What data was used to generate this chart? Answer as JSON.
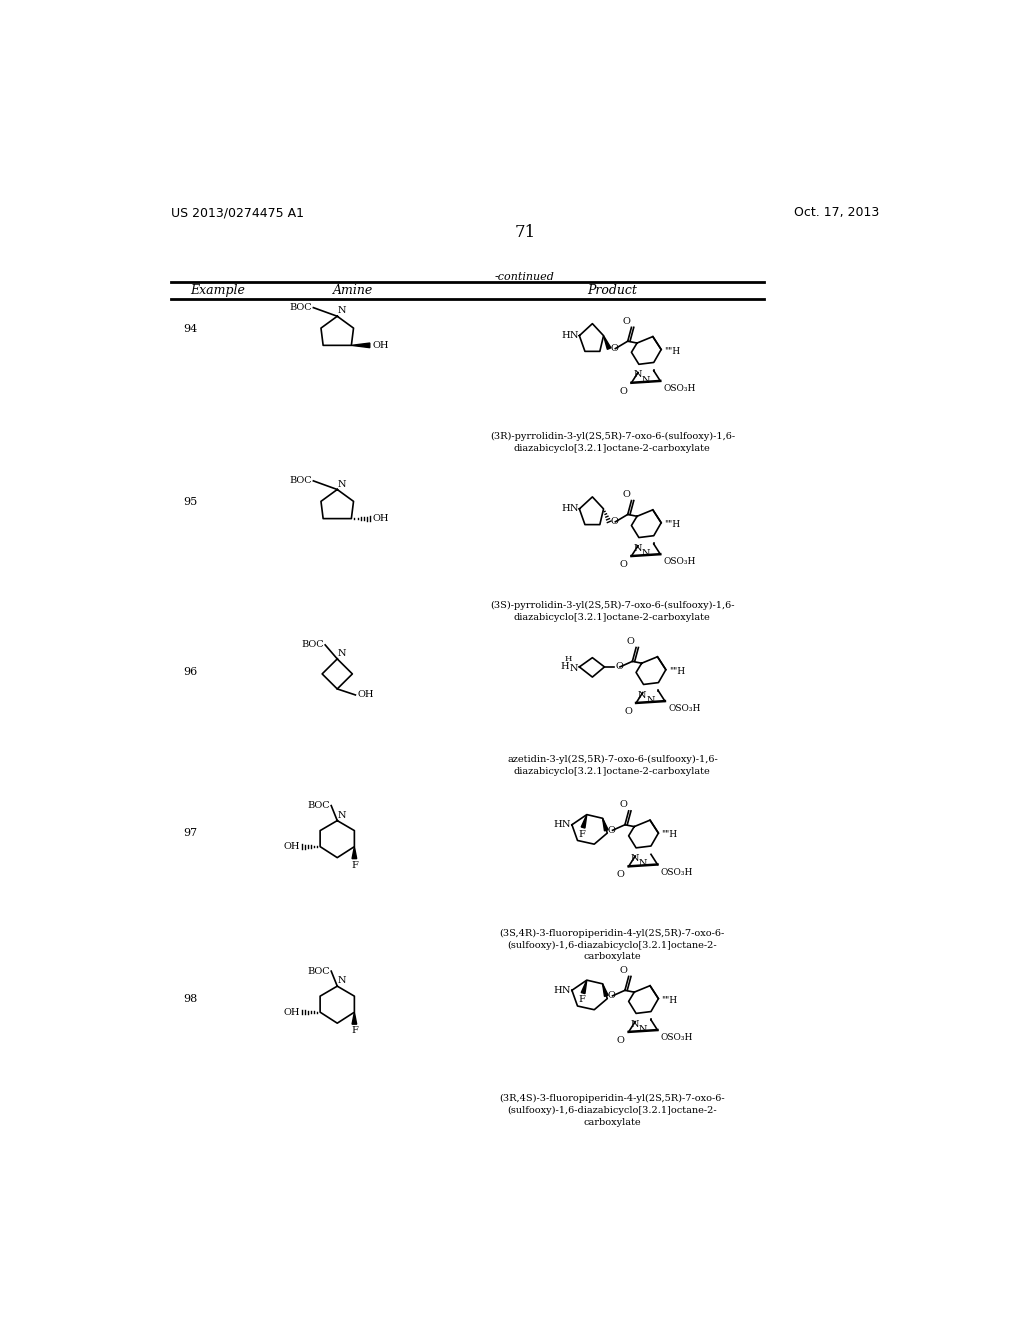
{
  "background_color": "#ffffff",
  "page_number": "71",
  "top_left_text": "US 2013/0274475 A1",
  "top_right_text": "Oct. 17, 2013",
  "continued_text": "-continued",
  "col_headers": [
    "Example",
    "Amine",
    "Product"
  ],
  "captions": [
    "(3R)-pyrrolidin-3-yl(2S,5R)-7-oxo-6-(sulfooxy)-1,6-\ndiazabicyclo[3.2.1]octane-2-carboxylate",
    "(3S)-pyrrolidin-3-yl(2S,5R)-7-oxo-6-(sulfooxy)-1,6-\ndiazabicyclo[3.2.1]octane-2-carboxylate",
    "azetidin-3-yl(2S,5R)-7-oxo-6-(sulfooxy)-1,6-\ndiazabicyclo[3.2.1]octane-2-carboxylate",
    "(3S,4R)-3-fluoropiperidin-4-yl(2S,5R)-7-oxo-6-\n(sulfooxy)-1,6-diazabicyclo[3.2.1]octane-2-\ncarboxylate",
    "(3R,4S)-3-fluoropiperidin-4-yl(2S,5R)-7-oxo-6-\n(sulfooxy)-1,6-diazabicyclo[3.2.1]octane-2-\ncarboxylate"
  ],
  "example_numbers": [
    "94",
    "95",
    "96",
    "97",
    "98"
  ],
  "text_color": "#000000",
  "line_color": "#000000",
  "font_size_header": 9,
  "font_size_body": 8,
  "font_size_top": 9
}
